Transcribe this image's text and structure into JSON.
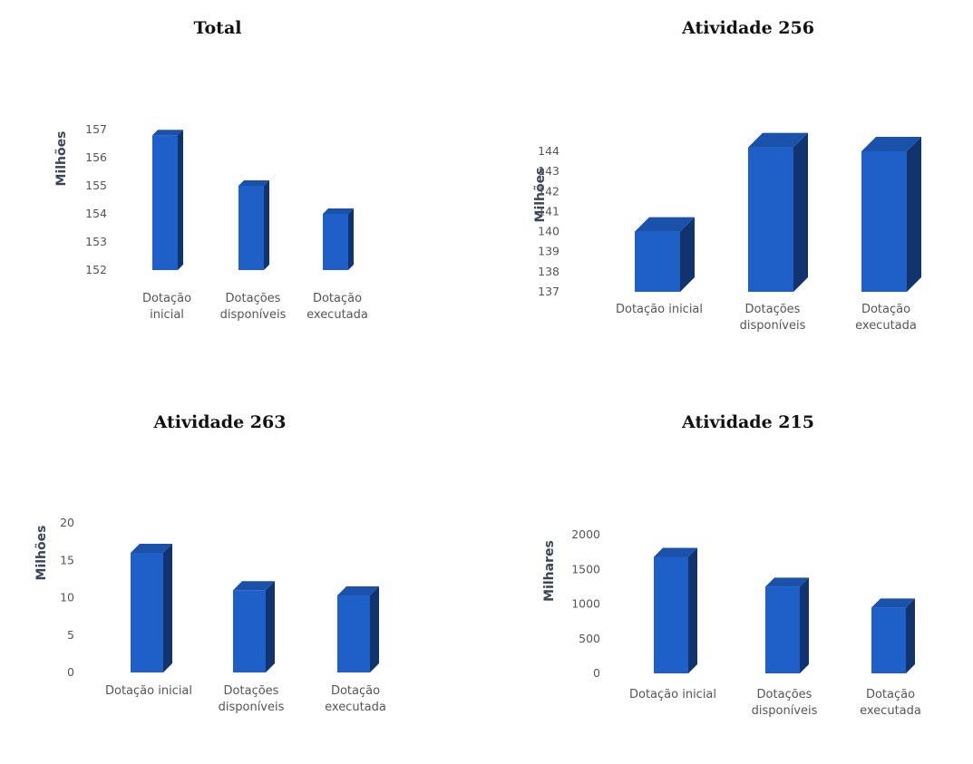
{
  "chart_data": [
    {
      "type": "bar",
      "title": "Total",
      "ylabel": "Milhões",
      "categories": [
        [
          "Dotação",
          "inicial"
        ],
        [
          "Dotações",
          "disponíveis"
        ],
        [
          "Dotação",
          "executada"
        ]
      ],
      "values": [
        156.8,
        155.0,
        154.0
      ],
      "ylim": [
        152,
        157
      ],
      "yticks": [
        152,
        153,
        154,
        155,
        156,
        157
      ],
      "color": "#1f5fc8"
    },
    {
      "type": "bar",
      "title": "Atividade 256",
      "ylabel": "Milhões",
      "categories": [
        [
          "Dotação inicial"
        ],
        [
          "Dotações",
          "disponíveis"
        ],
        [
          "Dotação",
          "executada"
        ]
      ],
      "values": [
        140.0,
        144.2,
        144.0
      ],
      "ylim": [
        137,
        144
      ],
      "yticks": [
        137,
        138,
        139,
        140,
        141,
        142,
        143,
        144
      ],
      "color": "#1f5fc8"
    },
    {
      "type": "bar",
      "title": "Atividade 263",
      "ylabel": "Milhões",
      "categories": [
        [
          "Dotação inicial"
        ],
        [
          "Dotações",
          "disponíveis"
        ],
        [
          "Dotação",
          "executada"
        ]
      ],
      "values": [
        16.0,
        11.0,
        10.3
      ],
      "ylim": [
        0,
        20
      ],
      "yticks": [
        0,
        5,
        10,
        15,
        20
      ],
      "color": "#1f5fc8"
    },
    {
      "type": "bar",
      "title": "Atividade 215",
      "ylabel": "Milhares",
      "categories": [
        [
          "Dotação inicial"
        ],
        [
          "Dotações",
          "disponíveis"
        ],
        [
          "Dotação",
          "executada"
        ]
      ],
      "values": [
        1680,
        1250,
        950
      ],
      "ylim": [
        0,
        2000
      ],
      "yticks": [
        0,
        500,
        1000,
        1500,
        2000
      ],
      "color": "#1f5fc8"
    }
  ]
}
